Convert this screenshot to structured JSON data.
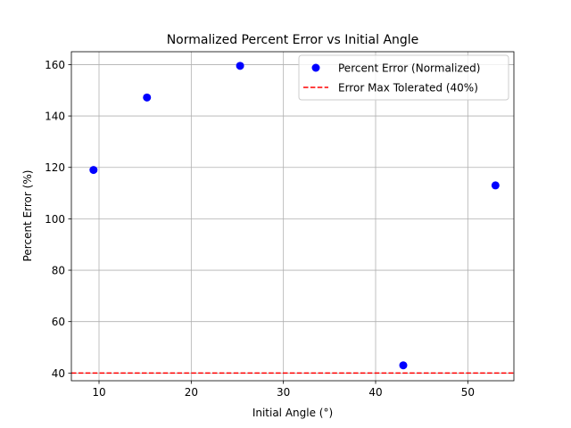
{
  "chart_data": {
    "type": "scatter",
    "title": "Normalized Percent Error vs Initial Angle",
    "xlabel": "Initial Angle (°)",
    "ylabel": "Percent Error (%)",
    "xlim": [
      7,
      55
    ],
    "ylim": [
      37,
      165
    ],
    "xticks": [
      10,
      20,
      30,
      40,
      50
    ],
    "yticks": [
      40,
      60,
      80,
      100,
      120,
      140,
      160
    ],
    "grid": true,
    "legend_position": "top-right",
    "series": [
      {
        "name": "Percent Error (Normalized)",
        "kind": "scatter",
        "color": "#0000ff",
        "points": [
          {
            "x": 9.4,
            "y": 119.0
          },
          {
            "x": 15.2,
            "y": 147.2
          },
          {
            "x": 25.3,
            "y": 159.5
          },
          {
            "x": 43.0,
            "y": 43.0
          },
          {
            "x": 53.0,
            "y": 113.0
          }
        ]
      },
      {
        "name": "Error Max Tolerated (40%)",
        "kind": "hline",
        "color": "#ff0000",
        "y": 40
      }
    ]
  }
}
